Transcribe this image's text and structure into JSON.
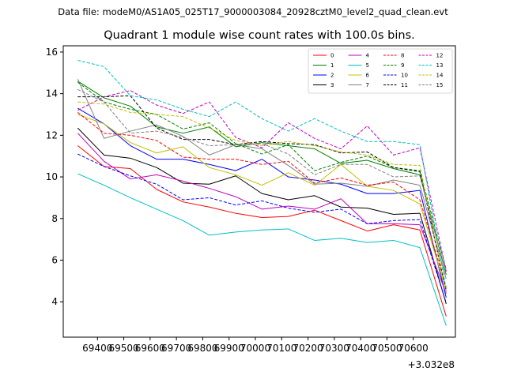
{
  "chart_data": {
    "type": "line",
    "suptitle": "Data file: modeM0/AS1A05_025T17_9000003084_20928cztM0_level2_quad_clean.evt",
    "title": "Quadrant 1 module wise count rates with 100.0s bins.",
    "x_offset_label": "+3.032e8",
    "xlim": [
      69270,
      70760
    ],
    "ylim": [
      2.3,
      16.3
    ],
    "x_ticks": [
      69400,
      69500,
      69600,
      69700,
      69800,
      69900,
      70000,
      70100,
      70200,
      70300,
      70400,
      70500,
      70600
    ],
    "y_ticks": [
      4,
      6,
      8,
      10,
      12,
      14,
      16
    ],
    "x": [
      69325,
      69425,
      69525,
      69625,
      69725,
      69825,
      69925,
      70025,
      70125,
      70225,
      70325,
      70425,
      70525,
      70625,
      70725
    ],
    "legend_position": "upper right",
    "series": [
      {
        "name": "0",
        "color": "#ff0000",
        "dash": "solid",
        "values": [
          11.5,
          10.5,
          10.4,
          9.4,
          8.8,
          8.55,
          8.25,
          8.05,
          8.1,
          8.4,
          7.9,
          7.4,
          7.7,
          7.45,
          3.3
        ]
      },
      {
        "name": "1",
        "color": "#008000",
        "dash": "solid",
        "values": [
          14.6,
          13.8,
          13.4,
          12.4,
          12.1,
          12.4,
          11.45,
          11.65,
          11.5,
          11.35,
          10.65,
          10.8,
          10.4,
          10.1,
          5.3
        ]
      },
      {
        "name": "2",
        "color": "#0000ff",
        "dash": "solid",
        "values": [
          13.3,
          12.55,
          11.5,
          10.85,
          10.85,
          10.6,
          10.3,
          10.85,
          10.0,
          9.85,
          9.65,
          9.2,
          9.2,
          9.35,
          4.2
        ]
      },
      {
        "name": "3",
        "color": "#000000",
        "dash": "solid",
        "values": [
          12.35,
          11.05,
          10.9,
          10.45,
          9.7,
          9.65,
          10.05,
          9.2,
          8.9,
          9.1,
          8.55,
          8.5,
          8.2,
          8.25,
          3.9
        ]
      },
      {
        "name": "4",
        "color": "#c000c0",
        "dash": "solid",
        "values": [
          12.1,
          10.75,
          9.9,
          10.1,
          9.8,
          9.45,
          9.05,
          8.45,
          8.6,
          8.45,
          8.95,
          7.75,
          7.75,
          7.7,
          4.4
        ]
      },
      {
        "name": "5",
        "color": "#00c0c0",
        "dash": "solid",
        "values": [
          10.15,
          9.6,
          9.0,
          8.45,
          7.9,
          7.2,
          7.35,
          7.45,
          7.5,
          6.95,
          7.05,
          6.85,
          6.95,
          6.6,
          2.85
        ]
      },
      {
        "name": "6",
        "color": "#c0c000",
        "dash": "solid",
        "values": [
          13.0,
          12.55,
          11.65,
          11.15,
          11.45,
          10.45,
          10.1,
          9.6,
          10.2,
          9.6,
          10.6,
          9.55,
          9.35,
          8.7,
          4.55
        ]
      },
      {
        "name": "7",
        "color": "#808080",
        "dash": "solid",
        "values": [
          14.7,
          11.85,
          12.2,
          12.5,
          11.95,
          11.05,
          11.55,
          11.35,
          10.55,
          9.65,
          9.7,
          9.55,
          9.85,
          9.6,
          5.1
        ]
      },
      {
        "name": "8",
        "color": "#ff0000",
        "dash": "dashed",
        "values": [
          13.1,
          12.1,
          12.0,
          11.75,
          10.95,
          10.85,
          10.85,
          10.6,
          10.75,
          9.7,
          9.95,
          9.6,
          9.75,
          8.9,
          4.7
        ]
      },
      {
        "name": "9",
        "color": "#008000",
        "dash": "dashed",
        "values": [
          14.55,
          13.6,
          13.25,
          13.0,
          12.3,
          12.6,
          11.6,
          11.1,
          11.55,
          10.3,
          10.7,
          11.0,
          10.45,
          10.3,
          5.55
        ]
      },
      {
        "name": "10",
        "color": "#0000ff",
        "dash": "dashed",
        "values": [
          11.1,
          10.5,
          10.05,
          9.65,
          8.9,
          9.0,
          8.65,
          8.85,
          8.5,
          8.3,
          8.45,
          7.75,
          7.9,
          7.95,
          3.95
        ]
      },
      {
        "name": "11",
        "color": "#000000",
        "dash": "dashed",
        "values": [
          13.85,
          13.85,
          13.9,
          12.35,
          11.8,
          11.8,
          11.55,
          11.7,
          11.6,
          11.55,
          11.15,
          11.2,
          10.45,
          10.25,
          4.5
        ]
      },
      {
        "name": "12",
        "color": "#c000c0",
        "dash": "dashed",
        "values": [
          13.2,
          13.85,
          14.15,
          13.45,
          13.05,
          13.6,
          11.9,
          11.4,
          12.6,
          11.85,
          11.35,
          12.45,
          11.05,
          11.4,
          5.45
        ]
      },
      {
        "name": "13",
        "color": "#00c0c0",
        "dash": "dashed",
        "values": [
          15.6,
          15.3,
          13.9,
          13.7,
          13.25,
          12.9,
          13.6,
          12.8,
          12.2,
          12.8,
          12.2,
          11.7,
          11.7,
          11.55,
          4.6
        ]
      },
      {
        "name": "14",
        "color": "#c0c000",
        "dash": "dashed",
        "values": [
          13.6,
          13.5,
          13.1,
          13.0,
          12.9,
          12.35,
          11.75,
          11.5,
          11.7,
          11.5,
          11.2,
          11.05,
          10.6,
          10.55,
          4.4
        ]
      },
      {
        "name": "15",
        "color": "#808080",
        "dash": "dashed",
        "values": [
          14.2,
          13.6,
          12.1,
          12.2,
          11.9,
          11.5,
          11.55,
          11.6,
          11.1,
          10.1,
          10.6,
          10.6,
          10.0,
          10.05,
          5.25
        ]
      }
    ]
  }
}
